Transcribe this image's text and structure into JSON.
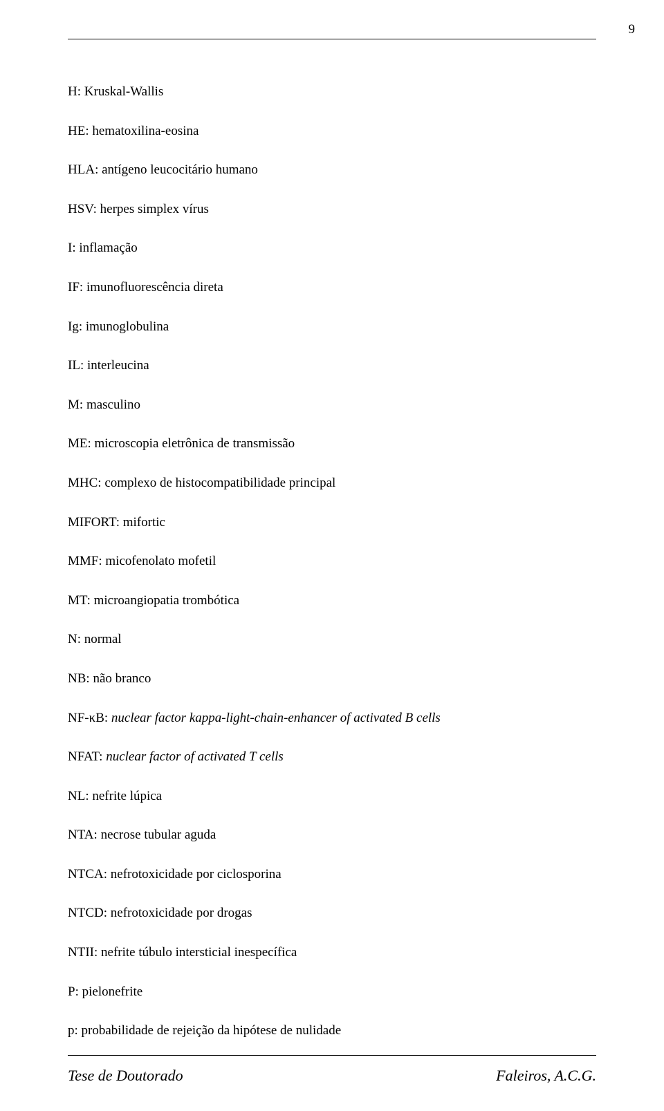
{
  "page_number": "9",
  "entries": [
    {
      "abbr": "H",
      "def": "Kruskal-Wallis",
      "italic": false
    },
    {
      "abbr": "HE",
      "def": "hematoxilina-eosina",
      "italic": false
    },
    {
      "abbr": "HLA",
      "def": "antígeno leucocitário humano",
      "italic": false
    },
    {
      "abbr": "HSV",
      "def": "herpes simplex vírus",
      "italic": false
    },
    {
      "abbr": "I",
      "def": "inflamação",
      "italic": false
    },
    {
      "abbr": "IF",
      "def": "imunofluorescência direta",
      "italic": false
    },
    {
      "abbr": "Ig",
      "def": "imunoglobulina",
      "italic": false
    },
    {
      "abbr": "IL",
      "def": "interleucina",
      "italic": false
    },
    {
      "abbr": "M",
      "def": "masculino",
      "italic": false
    },
    {
      "abbr": "ME",
      "def": "microscopia eletrônica de transmissão",
      "italic": false
    },
    {
      "abbr": "MHC",
      "def": "complexo de histocompatibilidade principal",
      "italic": false
    },
    {
      "abbr": "MIFORT",
      "def": "mifortic",
      "italic": false
    },
    {
      "abbr": "MMF",
      "def": "micofenolato mofetil",
      "italic": false
    },
    {
      "abbr": "MT",
      "def": "microangiopatia trombótica",
      "italic": false
    },
    {
      "abbr": "N",
      "def": "normal",
      "italic": false
    },
    {
      "abbr": "NB",
      "def": "não branco",
      "italic": false
    },
    {
      "abbr": "NF-κB",
      "def": "nuclear factor kappa-light-chain-enhancer of activated B cells",
      "italic": true
    },
    {
      "abbr": "NFAT",
      "def": "nuclear factor of activated T cells",
      "italic": true
    },
    {
      "abbr": "NL",
      "def": "nefrite lúpica",
      "italic": false
    },
    {
      "abbr": "NTA",
      "def": "necrose tubular aguda",
      "italic": false
    },
    {
      "abbr": "NTCA",
      "def": "nefrotoxicidade por ciclosporina",
      "italic": false
    },
    {
      "abbr": "NTCD",
      "def": "nefrotoxicidade por drogas",
      "italic": false
    },
    {
      "abbr": "NTII",
      "def": "nefrite túbulo intersticial inespecífica",
      "italic": false
    },
    {
      "abbr": "P",
      "def": "pielonefrite",
      "italic": false
    },
    {
      "abbr": "p",
      "def": "probabilidade de rejeição da hipótese de nulidade",
      "italic": false
    }
  ],
  "footer": {
    "left": "Tese de Doutorado",
    "right": "Faleiros, A.C.G."
  }
}
